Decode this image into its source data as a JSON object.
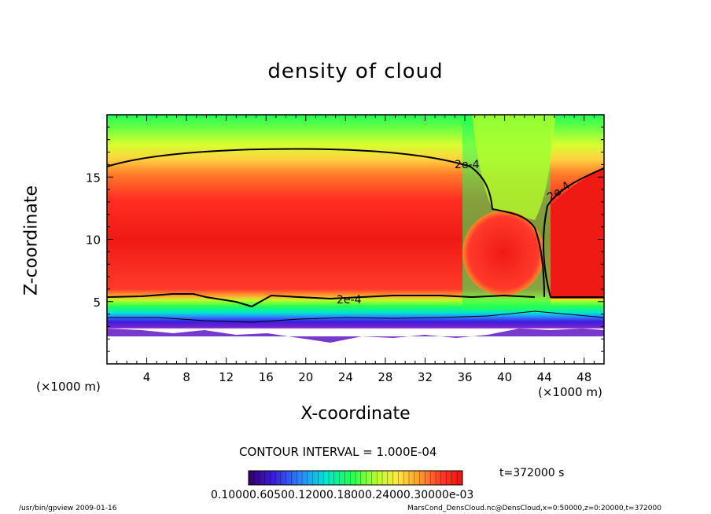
{
  "chart_data": {
    "type": "heatmap",
    "title": "density of cloud",
    "xlabel": "X-coordinate",
    "ylabel": "Z-coordinate",
    "x_unit": "(×1000 m)",
    "x_ticks": [
      4,
      8,
      12,
      16,
      20,
      24,
      28,
      32,
      36,
      40,
      44,
      48
    ],
    "y_ticks": [
      5,
      10,
      15
    ],
    "xlim": [
      0,
      50
    ],
    "ylim": [
      0,
      20
    ],
    "contour_label": "2e-4",
    "contour_interval": "CONTOUR INTERVAL = 1.000E-04",
    "time": "t=372000 s",
    "colorbar_label_text": "0.10000.60500.12000.18000.24000.30000e-03",
    "colormap": [
      "#330066",
      "#3b1ee0",
      "#2a8cff",
      "#00e6d0",
      "#22ff55",
      "#b8ff2a",
      "#ffe640",
      "#ff9a2a",
      "#ff3a2a",
      "#e8140f"
    ],
    "footer_left": "/usr/bin/gpview   2009-01-16",
    "footer_right": "MarsCond_DensCloud.nc@DensCloud,x=0:50000,z=0:20000,t=372000"
  }
}
